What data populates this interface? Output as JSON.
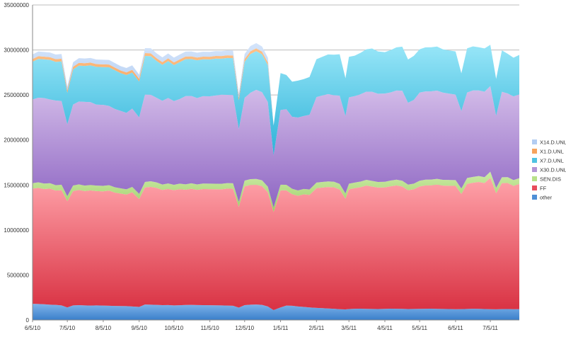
{
  "chart_data": {
    "type": "area",
    "stacked": true,
    "title": "",
    "xlabel": "",
    "ylabel": "",
    "ylim": [
      0,
      35000000
    ],
    "y_ticks": [
      "0",
      "5000000",
      "10000000",
      "15000000",
      "20000000",
      "25000000",
      "30000000",
      "35000000"
    ],
    "x_ticks": [
      "6/5/10",
      "7/5/10",
      "8/5/10",
      "9/5/10",
      "10/5/10",
      "11/5/10",
      "12/5/10",
      "1/5/11",
      "2/5/11",
      "3/5/11",
      "4/5/11",
      "5/5/11",
      "6/5/11",
      "7/5/11"
    ],
    "legend_position": "right",
    "grid": "horizontal",
    "x": [
      "2010-06-05",
      "2010-06-10",
      "2010-06-15",
      "2010-06-20",
      "2010-06-25",
      "2010-06-30",
      "2010-07-05",
      "2010-07-10",
      "2010-07-15",
      "2010-07-20",
      "2010-07-25",
      "2010-07-30",
      "2010-08-05",
      "2010-08-10",
      "2010-08-15",
      "2010-08-20",
      "2010-08-25",
      "2010-08-30",
      "2010-09-05",
      "2010-09-10",
      "2010-09-15",
      "2010-09-20",
      "2010-09-25",
      "2010-09-30",
      "2010-10-05",
      "2010-10-10",
      "2010-10-15",
      "2010-10-20",
      "2010-10-25",
      "2010-10-30",
      "2010-11-05",
      "2010-11-10",
      "2010-11-15",
      "2010-11-20",
      "2010-11-25",
      "2010-11-30",
      "2010-12-05",
      "2010-12-10",
      "2010-12-15",
      "2010-12-20",
      "2010-12-25",
      "2010-12-30",
      "2011-01-05",
      "2011-01-10",
      "2011-01-15",
      "2011-01-20",
      "2011-01-25",
      "2011-01-30",
      "2011-02-05",
      "2011-02-10",
      "2011-02-15",
      "2011-02-20",
      "2011-02-25",
      "2011-03-02",
      "2011-03-05",
      "2011-03-10",
      "2011-03-15",
      "2011-03-20",
      "2011-03-25",
      "2011-03-30",
      "2011-04-05",
      "2011-04-10",
      "2011-04-15",
      "2011-04-20",
      "2011-04-25",
      "2011-04-30",
      "2011-05-05",
      "2011-05-10",
      "2011-05-15",
      "2011-05-20",
      "2011-05-25",
      "2011-05-30",
      "2011-06-05",
      "2011-06-10",
      "2011-06-15",
      "2011-06-20",
      "2011-06-25",
      "2011-06-30",
      "2011-07-05",
      "2011-07-10",
      "2011-07-15",
      "2011-07-20",
      "2011-07-25",
      "2011-07-30"
    ],
    "series": [
      {
        "name": "other",
        "color": "#4f8fd6",
        "values": [
          1800000,
          1780000,
          1750000,
          1700000,
          1680000,
          1620000,
          1400000,
          1620000,
          1650000,
          1620000,
          1600000,
          1620000,
          1600000,
          1580000,
          1560000,
          1550000,
          1540000,
          1500000,
          1450000,
          1720000,
          1700000,
          1680000,
          1650000,
          1660000,
          1620000,
          1640000,
          1670000,
          1680000,
          1660000,
          1650000,
          1640000,
          1630000,
          1620000,
          1600000,
          1580000,
          1380000,
          1650000,
          1700000,
          1720000,
          1680000,
          1500000,
          1100000,
          1400000,
          1600000,
          1580000,
          1500000,
          1460000,
          1400000,
          1350000,
          1320000,
          1280000,
          1250000,
          1200000,
          1180000,
          1220000,
          1250000,
          1260000,
          1240000,
          1230000,
          1220000,
          1240000,
          1260000,
          1250000,
          1240000,
          1220000,
          1230000,
          1240000,
          1250000,
          1260000,
          1240000,
          1230000,
          1220000,
          1200000,
          1210000,
          1230000,
          1250000,
          1240000,
          1220000,
          1200000,
          1190000,
          1210000,
          1220000,
          1200000,
          1210000
        ]
      },
      {
        "name": "FF",
        "color": "#e84c5c",
        "values": [
          12800000,
          12900000,
          12800000,
          12900000,
          12700000,
          12800000,
          11800000,
          12700000,
          12800000,
          12700000,
          12800000,
          12700000,
          12700000,
          12800000,
          12600000,
          12500000,
          12400000,
          12700000,
          12000000,
          13000000,
          13100000,
          13000000,
          12800000,
          12900000,
          12800000,
          12900000,
          12800000,
          12900000,
          12800000,
          12900000,
          12900000,
          12900000,
          12900000,
          13000000,
          13000000,
          11200000,
          13200000,
          13300000,
          13300000,
          13200000,
          12700000,
          10900000,
          13000000,
          12800000,
          12400000,
          12300000,
          12500000,
          12500000,
          13300000,
          13400000,
          13500000,
          13500000,
          13300000,
          12300000,
          13300000,
          13400000,
          13500000,
          13700000,
          13600000,
          13500000,
          13500000,
          13600000,
          13700000,
          13600000,
          13200000,
          13300000,
          13600000,
          13700000,
          13700000,
          13800000,
          13700000,
          13700000,
          13700000,
          12800000,
          13900000,
          14000000,
          14100000,
          14000000,
          14600000,
          12900000,
          14000000,
          14000000,
          13700000,
          13900000
        ]
      },
      {
        "name": "SEN.DIS",
        "color": "#b8e08a",
        "values": [
          600000,
          620000,
          610000,
          600000,
          600000,
          610000,
          550000,
          620000,
          620000,
          610000,
          600000,
          610000,
          600000,
          600000,
          590000,
          580000,
          580000,
          590000,
          560000,
          620000,
          620000,
          610000,
          600000,
          610000,
          600000,
          610000,
          600000,
          610000,
          600000,
          610000,
          610000,
          610000,
          610000,
          610000,
          610000,
          540000,
          640000,
          650000,
          650000,
          640000,
          620000,
          500000,
          630000,
          620000,
          600000,
          590000,
          600000,
          600000,
          620000,
          620000,
          620000,
          620000,
          620000,
          580000,
          620000,
          620000,
          620000,
          630000,
          630000,
          620000,
          620000,
          630000,
          640000,
          630000,
          620000,
          620000,
          630000,
          640000,
          640000,
          640000,
          640000,
          640000,
          640000,
          600000,
          650000,
          650000,
          660000,
          650000,
          680000,
          600000,
          650000,
          650000,
          640000,
          650000
        ]
      },
      {
        "name": "X30.D.UNL",
        "color": "#b495d6",
        "values": [
          9300000,
          9400000,
          9500000,
          9300000,
          9400000,
          9300000,
          8000000,
          9000000,
          9200000,
          9300000,
          9200000,
          9000000,
          9000000,
          8800000,
          8700000,
          8600000,
          8500000,
          8700000,
          8500000,
          9700000,
          9600000,
          9400000,
          9300000,
          9500000,
          9300000,
          9400000,
          9800000,
          9700000,
          9600000,
          9700000,
          9700000,
          9800000,
          9900000,
          9800000,
          9800000,
          8100000,
          9200000,
          9600000,
          9900000,
          9800000,
          9400000,
          5800000,
          8300000,
          8400000,
          8000000,
          8100000,
          8100000,
          8300000,
          9500000,
          9600000,
          9700000,
          9600000,
          9800000,
          8600000,
          9600000,
          9600000,
          9700000,
          9800000,
          9900000,
          9800000,
          9800000,
          9800000,
          9900000,
          10000000,
          9100000,
          9300000,
          9800000,
          9800000,
          9800000,
          9800000,
          9700000,
          9600000,
          9500000,
          8600000,
          9500000,
          9600000,
          9500000,
          9500000,
          9500000,
          8000000,
          9500000,
          9300000,
          9300000,
          9300000
        ]
      },
      {
        "name": "X7.D.UNL",
        "color": "#4fc3e2",
        "values": [
          4200000,
          4300000,
          4300000,
          4400000,
          4300000,
          4400000,
          3500000,
          3900000,
          4000000,
          4000000,
          4100000,
          4200000,
          4200000,
          4300000,
          4300000,
          4200000,
          4200000,
          4000000,
          4000000,
          4300000,
          4300000,
          4100000,
          4000000,
          4100000,
          4000000,
          4100000,
          4100000,
          4100000,
          4200000,
          4100000,
          4100000,
          4100000,
          4000000,
          4100000,
          4100000,
          3200000,
          4000000,
          4300000,
          4300000,
          4200000,
          4100000,
          3300000,
          4100000,
          3800000,
          3900000,
          4100000,
          4100000,
          4200000,
          4200000,
          4300000,
          4400000,
          4500000,
          4600000,
          4200000,
          4500000,
          4500000,
          4600000,
          4700000,
          4800000,
          4700000,
          4600000,
          4700000,
          4800000,
          4900000,
          4800000,
          4900000,
          4800000,
          4900000,
          4900000,
          4900000,
          4800000,
          4800000,
          4800000,
          4200000,
          4900000,
          4900000,
          4800000,
          4800000,
          4600000,
          4100000,
          4600000,
          4400000,
          4300000,
          4400000
        ]
      },
      {
        "name": "X1.D.UNL",
        "color": "#f7a35c",
        "values": [
          300000,
          310000,
          300000,
          300000,
          300000,
          300000,
          250000,
          300000,
          300000,
          300000,
          300000,
          300000,
          300000,
          300000,
          300000,
          290000,
          290000,
          300000,
          280000,
          310000,
          310000,
          300000,
          300000,
          300000,
          300000,
          300000,
          300000,
          300000,
          300000,
          300000,
          300000,
          300000,
          300000,
          300000,
          300000,
          260000,
          300000,
          310000,
          310000,
          300000,
          290000,
          0,
          0,
          0,
          0,
          0,
          0,
          0,
          0,
          0,
          0,
          0,
          0,
          0,
          0,
          0,
          0,
          0,
          0,
          0,
          0,
          0,
          0,
          0,
          0,
          0,
          0,
          0,
          0,
          0,
          0,
          0,
          0,
          0,
          0,
          0,
          0,
          0,
          0,
          0,
          0,
          0,
          0,
          0
        ]
      },
      {
        "name": "X14.D.UNL",
        "color": "#b3cdf2",
        "values": [
          500000,
          520000,
          520000,
          520000,
          510000,
          520000,
          400000,
          500000,
          520000,
          520000,
          510000,
          510000,
          510000,
          510000,
          500000,
          490000,
          490000,
          500000,
          460000,
          550000,
          560000,
          540000,
          530000,
          540000,
          530000,
          540000,
          550000,
          550000,
          540000,
          540000,
          540000,
          540000,
          540000,
          540000,
          540000,
          420000,
          560000,
          580000,
          580000,
          570000,
          540000,
          0,
          0,
          0,
          0,
          0,
          0,
          0,
          0,
          0,
          0,
          0,
          0,
          0,
          0,
          0,
          0,
          0,
          0,
          0,
          0,
          0,
          0,
          0,
          0,
          0,
          0,
          0,
          0,
          0,
          0,
          0,
          0,
          0,
          0,
          0,
          0,
          0,
          0,
          0,
          0,
          0,
          0,
          0
        ]
      }
    ]
  },
  "legend": {
    "items": [
      "X14.D.UNL",
      "X1.D.UNL",
      "X7.D.UNL",
      "X30.D.UNL",
      "SEN.DIS",
      "FF",
      "other"
    ]
  }
}
